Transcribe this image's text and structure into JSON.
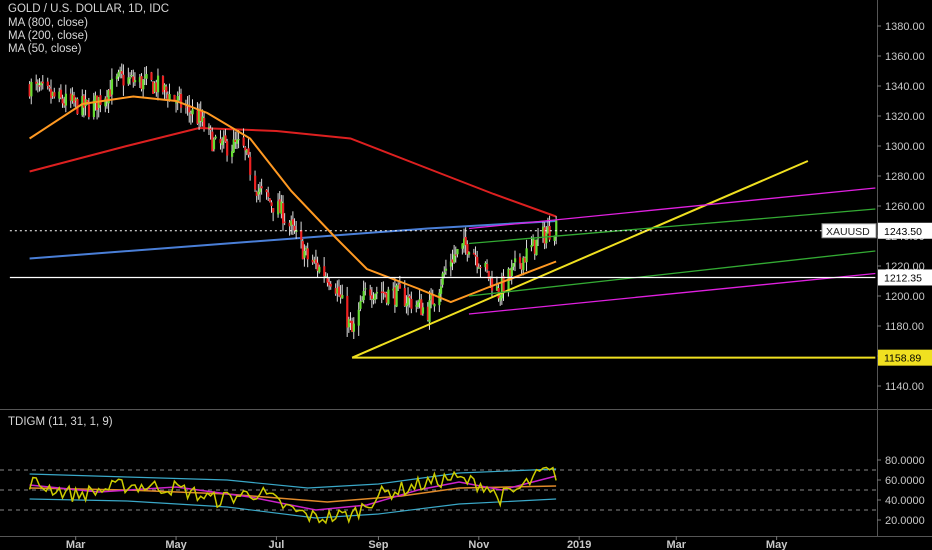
{
  "header": {
    "title": "GOLD / U.S. DOLLAR, 1D, IDC",
    "ma800": "MA (800, close)",
    "ma200": "MA (200, close)",
    "ma50": "MA (50, close)",
    "indicator": "TDIGM (11, 31, 1, 9)"
  },
  "colors": {
    "bg": "#000000",
    "up": "#66dd33",
    "down": "#ee2222",
    "ma50": "#ff9922",
    "ma200": "#dd2020",
    "ma800": "#4a7fd8",
    "trend_yellow": "#f0e020",
    "channel_magenta": "#e020e0",
    "channel_green": "#33aa33",
    "support_white": "#ffffff",
    "tdi_price": "#cccc00",
    "tdi_signal": "#cc22cc",
    "tdi_base": "#e08a2a",
    "tdi_band": "#3aa8c8"
  },
  "chart_data": [
    {
      "type": "candlestick",
      "symbol": "XAUUSD",
      "ylim": [
        1130,
        1390
      ],
      "y_ticks": [
        "1140.00",
        "1160.00",
        "1180.00",
        "1200.00",
        "1220.00",
        "1240.00",
        "1260.00",
        "1280.00",
        "1300.00",
        "1320.00",
        "1340.00",
        "1360.00",
        "1380.00"
      ],
      "x_ticks": [
        "Mar",
        "May",
        "Jul",
        "Sep",
        "Nov",
        "2019",
        "Mar",
        "May"
      ],
      "labels": {
        "last_price": "1243.50",
        "last_price_tag": "XAUUSD",
        "support": "1212.35",
        "low": "1158.89"
      },
      "price_path": [
        {
          "date": "2018-02-01",
          "close": 1340
        },
        {
          "date": "2018-02-20",
          "close": 1330
        },
        {
          "date": "2018-03-10",
          "close": 1325
        },
        {
          "date": "2018-03-28",
          "close": 1345
        },
        {
          "date": "2018-04-20",
          "close": 1340
        },
        {
          "date": "2018-05-15",
          "close": 1318
        },
        {
          "date": "2018-05-25",
          "close": 1300
        },
        {
          "date": "2018-06-10",
          "close": 1300
        },
        {
          "date": "2018-06-20",
          "close": 1270
        },
        {
          "date": "2018-07-05",
          "close": 1255
        },
        {
          "date": "2018-07-20",
          "close": 1225
        },
        {
          "date": "2018-08-05",
          "close": 1210
        },
        {
          "date": "2018-08-16",
          "close": 1175
        },
        {
          "date": "2018-08-25",
          "close": 1205
        },
        {
          "date": "2018-09-15",
          "close": 1200
        },
        {
          "date": "2018-10-01",
          "close": 1190
        },
        {
          "date": "2018-10-15",
          "close": 1225
        },
        {
          "date": "2018-10-26",
          "close": 1235
        },
        {
          "date": "2018-11-13",
          "close": 1202
        },
        {
          "date": "2018-11-25",
          "close": 1222
        },
        {
          "date": "2018-12-10",
          "close": 1240
        },
        {
          "date": "2018-12-18",
          "close": 1248
        }
      ],
      "ma50": [
        {
          "date": "2018-02-01",
          "value": 1305
        },
        {
          "date": "2018-03-05",
          "value": 1328
        },
        {
          "date": "2018-04-05",
          "value": 1333
        },
        {
          "date": "2018-05-01",
          "value": 1330
        },
        {
          "date": "2018-05-20",
          "value": 1322
        },
        {
          "date": "2018-06-15",
          "value": 1305
        },
        {
          "date": "2018-07-10",
          "value": 1270
        },
        {
          "date": "2018-08-05",
          "value": 1240
        },
        {
          "date": "2018-08-25",
          "value": 1218
        },
        {
          "date": "2018-09-25",
          "value": 1205
        },
        {
          "date": "2018-10-15",
          "value": 1196
        },
        {
          "date": "2018-11-05",
          "value": 1205
        },
        {
          "date": "2018-12-18",
          "value": 1223
        }
      ],
      "ma200": [
        {
          "date": "2018-02-01",
          "value": 1283
        },
        {
          "date": "2018-04-01",
          "value": 1300
        },
        {
          "date": "2018-05-15",
          "value": 1312
        },
        {
          "date": "2018-07-01",
          "value": 1310
        },
        {
          "date": "2018-08-15",
          "value": 1305
        },
        {
          "date": "2018-10-01",
          "value": 1285
        },
        {
          "date": "2018-11-10",
          "value": 1268
        },
        {
          "date": "2018-12-18",
          "value": 1253
        }
      ],
      "ma800": [
        {
          "date": "2018-02-01",
          "value": 1225
        },
        {
          "date": "2018-06-01",
          "value": 1235
        },
        {
          "date": "2018-10-01",
          "value": 1245
        },
        {
          "date": "2018-12-18",
          "value": 1250
        }
      ],
      "lines": [
        {
          "name": "uptrend",
          "color": "trend_yellow",
          "from": {
            "date": "2018-08-16",
            "value": 1158.89
          },
          "to": {
            "date": "2019-05-20",
            "value": 1290
          }
        },
        {
          "name": "low-level",
          "color": "trend_yellow",
          "from": {
            "date": "2018-08-16",
            "value": 1158.89
          },
          "to": {
            "date": "2019-06-30",
            "value": 1158.89
          }
        },
        {
          "name": "channel-upper",
          "color": "channel_magenta",
          "from": {
            "date": "2018-10-26",
            "value": 1245
          },
          "to": {
            "date": "2019-06-30",
            "value": 1272
          }
        },
        {
          "name": "channel-lower",
          "color": "channel_magenta",
          "from": {
            "date": "2018-10-26",
            "value": 1188
          },
          "to": {
            "date": "2019-06-30",
            "value": 1215
          }
        },
        {
          "name": "channel-green-upper",
          "color": "channel_green",
          "from": {
            "date": "2018-10-26",
            "value": 1235
          },
          "to": {
            "date": "2019-06-30",
            "value": 1258
          }
        },
        {
          "name": "channel-green-lower",
          "color": "channel_green",
          "from": {
            "date": "2018-10-26",
            "value": 1200
          },
          "to": {
            "date": "2019-06-30",
            "value": 1230
          }
        },
        {
          "name": "support",
          "color": "support_white",
          "from": {
            "date": "2018-01-20",
            "value": 1212.35
          },
          "to": {
            "date": "2019-06-30",
            "value": 1212.35
          }
        },
        {
          "name": "last-price",
          "color": "support_white",
          "dashed": true,
          "from": {
            "date": "2018-01-20",
            "value": 1243.5
          },
          "to": {
            "date": "2019-06-30",
            "value": 1243.5
          }
        }
      ]
    },
    {
      "type": "line",
      "name": "TDIGM (11, 31, 1, 9)",
      "ylim": [
        15,
        85
      ],
      "y_ticks": [
        "20.0000",
        "40.0000",
        "60.0000",
        "80.0000"
      ],
      "levels": [
        30,
        50,
        70
      ],
      "price_line": [
        {
          "date": "2018-02-01",
          "value": 58
        },
        {
          "date": "2018-03-01",
          "value": 45
        },
        {
          "date": "2018-04-01",
          "value": 55
        },
        {
          "date": "2018-05-01",
          "value": 52
        },
        {
          "date": "2018-05-25",
          "value": 40
        },
        {
          "date": "2018-06-20",
          "value": 48
        },
        {
          "date": "2018-07-10",
          "value": 30
        },
        {
          "date": "2018-07-25",
          "value": 22
        },
        {
          "date": "2018-08-16",
          "value": 25
        },
        {
          "date": "2018-09-01",
          "value": 45
        },
        {
          "date": "2018-09-25",
          "value": 55
        },
        {
          "date": "2018-10-15",
          "value": 62
        },
        {
          "date": "2018-11-05",
          "value": 55
        },
        {
          "date": "2018-11-13",
          "value": 42
        },
        {
          "date": "2018-11-25",
          "value": 50
        },
        {
          "date": "2018-12-10",
          "value": 68
        },
        {
          "date": "2018-12-18",
          "value": 66
        }
      ],
      "signal_line": [
        {
          "date": "2018-02-01",
          "value": 55
        },
        {
          "date": "2018-03-15",
          "value": 48
        },
        {
          "date": "2018-05-01",
          "value": 53
        },
        {
          "date": "2018-06-15",
          "value": 43
        },
        {
          "date": "2018-07-25",
          "value": 30
        },
        {
          "date": "2018-08-25",
          "value": 35
        },
        {
          "date": "2018-09-25",
          "value": 50
        },
        {
          "date": "2018-10-20",
          "value": 58
        },
        {
          "date": "2018-11-15",
          "value": 50
        },
        {
          "date": "2018-12-18",
          "value": 64
        }
      ],
      "base_line": [
        {
          "date": "2018-02-01",
          "value": 52
        },
        {
          "date": "2018-04-01",
          "value": 50
        },
        {
          "date": "2018-06-01",
          "value": 46
        },
        {
          "date": "2018-08-01",
          "value": 38
        },
        {
          "date": "2018-09-15",
          "value": 44
        },
        {
          "date": "2018-10-20",
          "value": 52
        },
        {
          "date": "2018-12-18",
          "value": 54
        }
      ],
      "upper_band": [
        {
          "date": "2018-02-01",
          "value": 66
        },
        {
          "date": "2018-04-01",
          "value": 63
        },
        {
          "date": "2018-06-01",
          "value": 60
        },
        {
          "date": "2018-07-20",
          "value": 52
        },
        {
          "date": "2018-09-01",
          "value": 56
        },
        {
          "date": "2018-10-20",
          "value": 67
        },
        {
          "date": "2018-12-18",
          "value": 71
        }
      ],
      "lower_band": [
        {
          "date": "2018-02-01",
          "value": 41
        },
        {
          "date": "2018-04-01",
          "value": 39
        },
        {
          "date": "2018-06-01",
          "value": 33
        },
        {
          "date": "2018-07-25",
          "value": 22
        },
        {
          "date": "2018-09-01",
          "value": 26
        },
        {
          "date": "2018-10-20",
          "value": 36
        },
        {
          "date": "2018-12-18",
          "value": 41
        }
      ]
    }
  ]
}
